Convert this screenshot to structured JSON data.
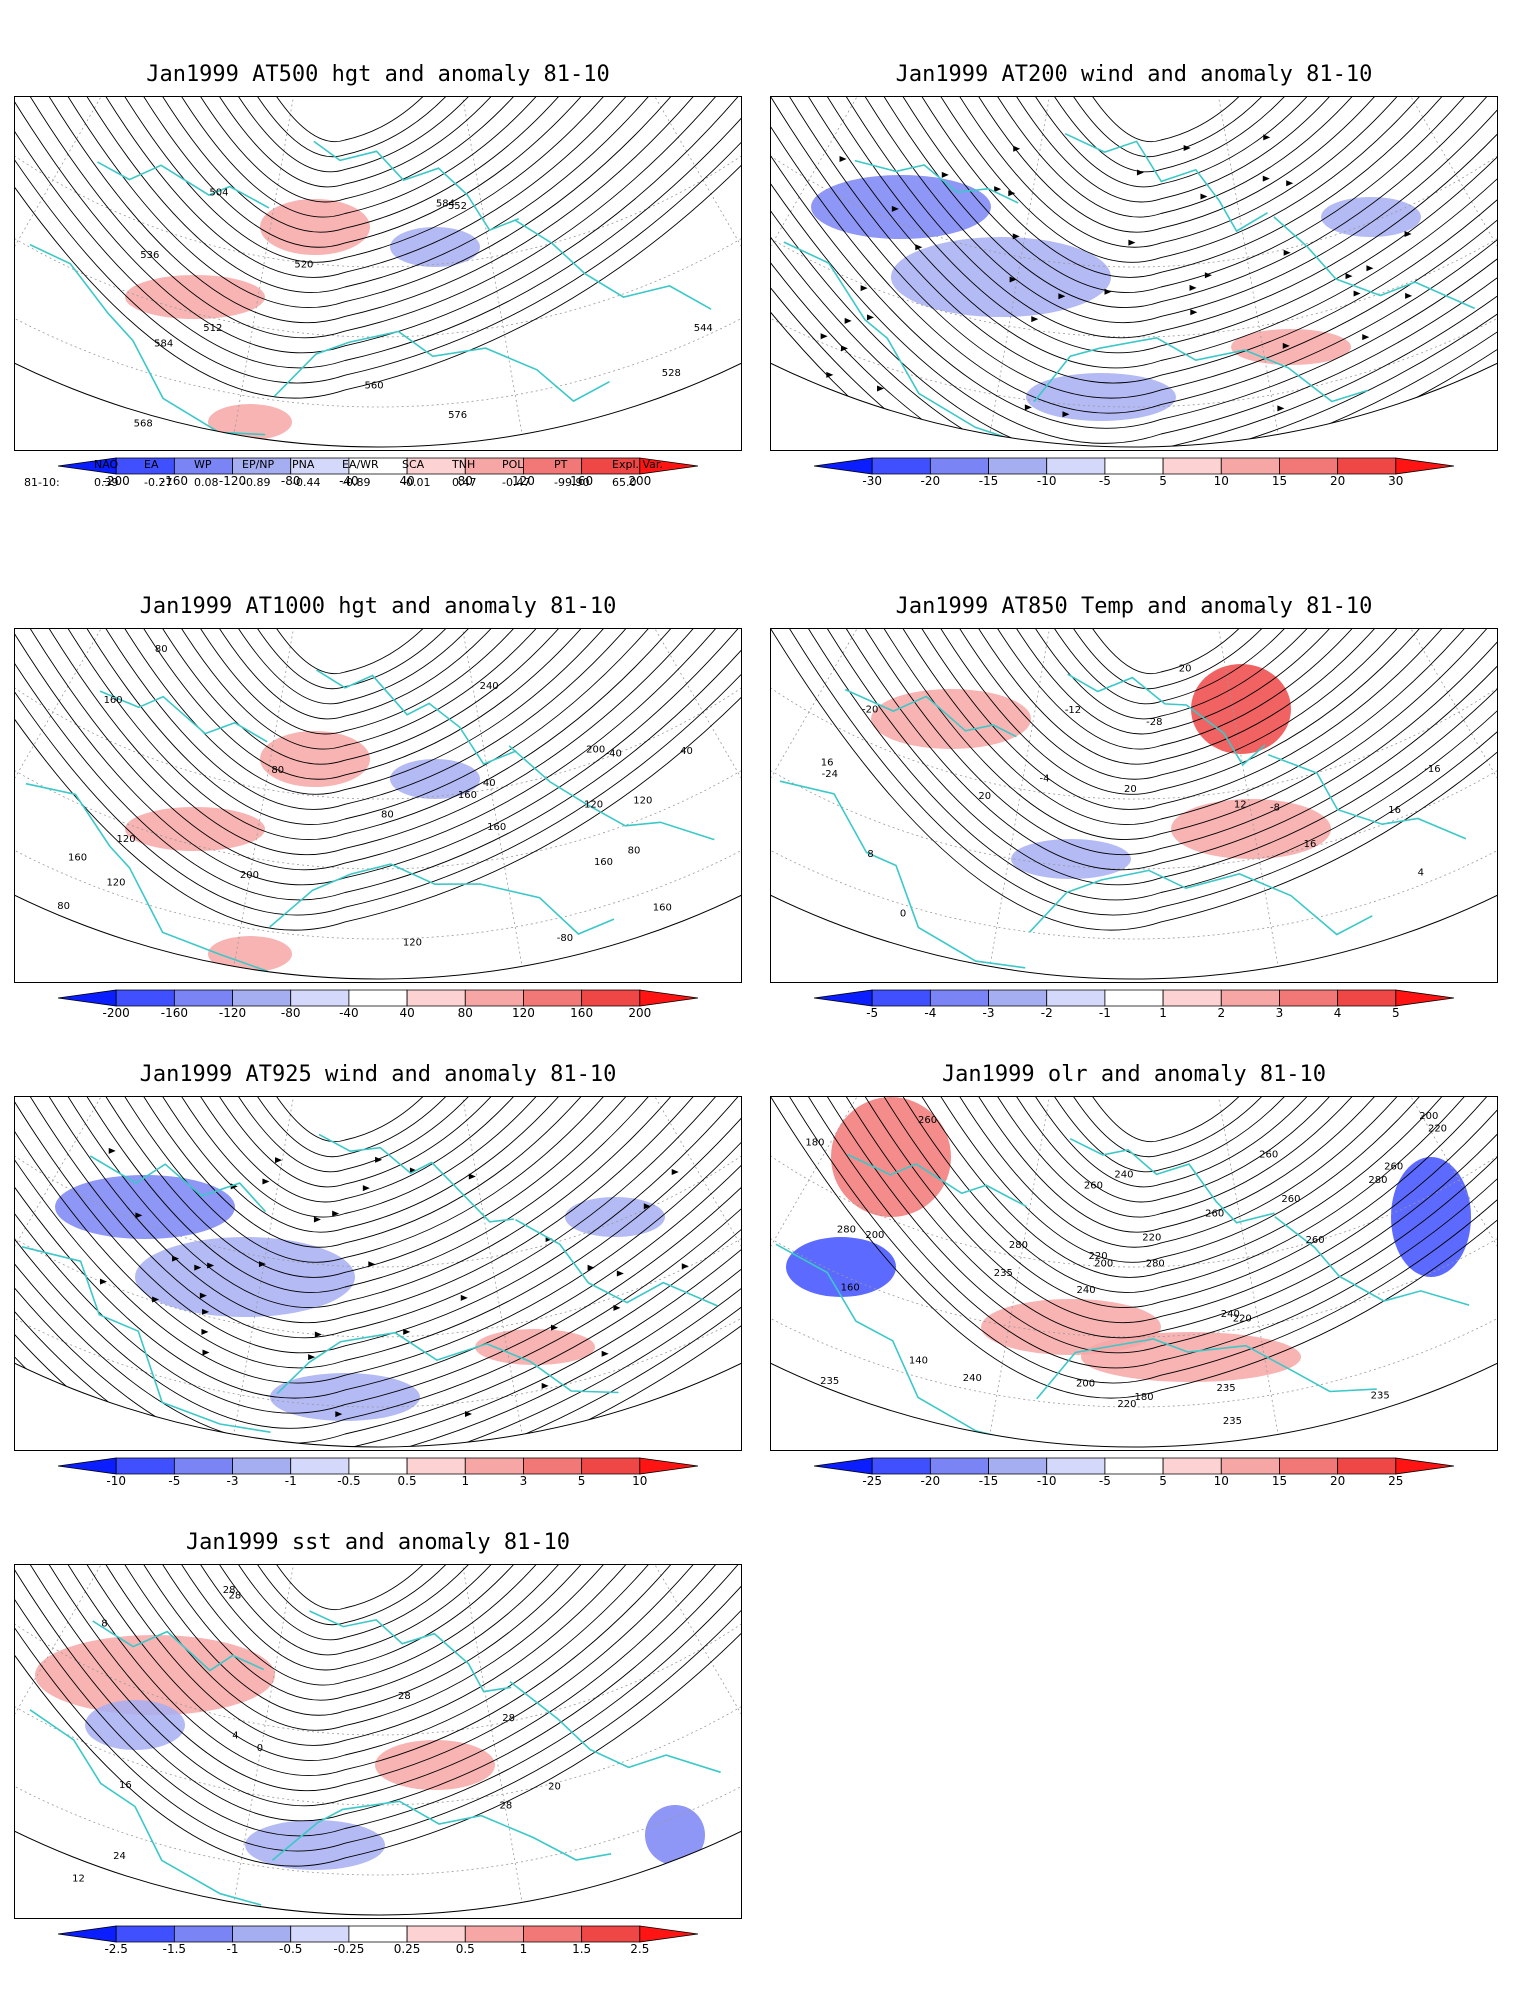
{
  "panels": [
    {
      "title": "Jan1999 AT500 hgt and anomaly 81-10",
      "kind": "hgt",
      "colorbar": [
        "-200",
        "-160",
        "-120",
        "-80",
        "-40",
        "40",
        "80",
        "120",
        "160",
        "200"
      ],
      "contour_labels": [
        "504",
        "512",
        "520",
        "528",
        "536",
        "544",
        "552",
        "560",
        "568",
        "576",
        "584",
        "584"
      ]
    },
    {
      "title": "Jan1999 AT200 wind and anomaly 81-10",
      "kind": "wind",
      "colorbar": [
        "-30",
        "-20",
        "-15",
        "-10",
        "-5",
        "5",
        "10",
        "15",
        "20",
        "30"
      ],
      "contour_labels": []
    },
    {
      "title": "Jan1999 AT1000 hgt and anomaly 81-10",
      "kind": "hgt",
      "colorbar": [
        "-200",
        "-160",
        "-120",
        "-80",
        "-40",
        "40",
        "80",
        "120",
        "160",
        "200"
      ],
      "contour_labels": [
        "160",
        "160",
        "80",
        "40",
        "120",
        "80",
        "160",
        "120",
        "-40",
        "-80",
        "40",
        "80",
        "120",
        "160",
        "200",
        "200",
        "240",
        "160",
        "120",
        "80",
        "160",
        "120",
        "80"
      ]
    },
    {
      "title": "Jan1999 AT850 Temp and anomaly 81-10",
      "kind": "temp",
      "colorbar": [
        "-5",
        "-4",
        "-3",
        "-2",
        "-1",
        "1",
        "2",
        "3",
        "4",
        "5"
      ],
      "contour_labels": [
        "16",
        "16",
        "20",
        "-28",
        "-20",
        "-24",
        "-16",
        "-12",
        "-8",
        "-4",
        "0",
        "4",
        "8",
        "12",
        "16",
        "20",
        "20"
      ]
    },
    {
      "title": "Jan1999 AT925 wind and anomaly 81-10",
      "kind": "wind",
      "colorbar": [
        "-10",
        "-5",
        "-3",
        "-1",
        "-0.5",
        "0.5",
        "1",
        "3",
        "5",
        "10"
      ],
      "contour_labels": []
    },
    {
      "title": "Jan1999 olr and anomaly 81-10",
      "kind": "olr",
      "colorbar": [
        "-25",
        "-20",
        "-15",
        "-10",
        "-5",
        "5",
        "10",
        "15",
        "20",
        "25"
      ],
      "contour_labels": [
        "260",
        "280",
        "260",
        "240",
        "280",
        "160",
        "140",
        "180",
        "200",
        "220",
        "180",
        "200",
        "235",
        "260",
        "220",
        "235",
        "240",
        "260",
        "280",
        "260",
        "240",
        "220",
        "235",
        "260",
        "220",
        "280",
        "235",
        "200",
        "240",
        "220",
        "260",
        "235",
        "200"
      ]
    },
    {
      "title": "Jan1999 sst and anomaly 81-10",
      "kind": "sst",
      "colorbar": [
        "-2.5",
        "-1.5",
        "-1",
        "-0.5",
        "-0.25",
        "0.25",
        "0.5",
        "1",
        "1.5",
        "2.5"
      ],
      "contour_labels": [
        "28",
        "28",
        "20",
        "16",
        "12",
        "8",
        "4",
        "0",
        "28",
        "24",
        "28",
        "28"
      ]
    }
  ],
  "index_table": {
    "headers": [
      "NAO",
      "EA",
      "WP",
      "EP/NP",
      "PNA",
      "EA/WR",
      "SCA",
      "TNH",
      "POL",
      "PT",
      "Expl. Var."
    ],
    "row_label": "81-10:",
    "values": [
      "0.39",
      "-0.27",
      "0.08",
      "-0.89",
      "-0.44",
      "-0.89",
      "-0.01",
      "0.47",
      "-0.47",
      "-99.90",
      "65.0"
    ]
  },
  "colors": {
    "coastline": "#3cc8c8",
    "contour": "#000000",
    "grid": "#9a9a9a",
    "scale": [
      "#0a1eff",
      "#4050ff",
      "#7a84f5",
      "#a6aef2",
      "#d4d8fa",
      "#ffffff",
      "#fcd2d2",
      "#f7a6a6",
      "#f27878",
      "#ef4646",
      "#ff1414"
    ]
  }
}
